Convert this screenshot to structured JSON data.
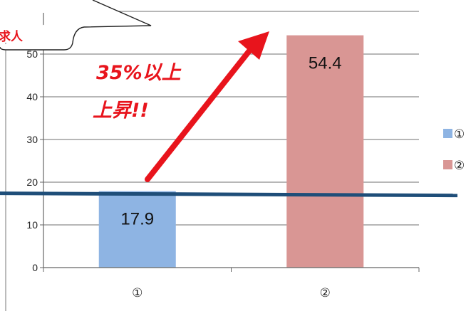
{
  "chart_data": {
    "type": "bar",
    "categories": [
      "①",
      "②"
    ],
    "values": [
      17.9,
      54.4
    ],
    "colors": [
      "#8eb4e3",
      "#d99694"
    ],
    "ylim": [
      0,
      60
    ],
    "yticks": [
      0,
      10,
      20,
      30,
      40,
      50
    ],
    "grid": true,
    "legend": {
      "placement": "right",
      "entries": [
        {
          "label": "①",
          "color": "#8eb4e3"
        },
        {
          "label": "②",
          "color": "#d99694"
        }
      ]
    },
    "reference_line": {
      "value": 17.4,
      "color": "#1f4e79"
    },
    "annotations": {
      "callout": "求人",
      "arrow_text_line1": "35%以上",
      "arrow_text_line2": "上昇!!",
      "arrow_color": "#e8141c"
    }
  }
}
